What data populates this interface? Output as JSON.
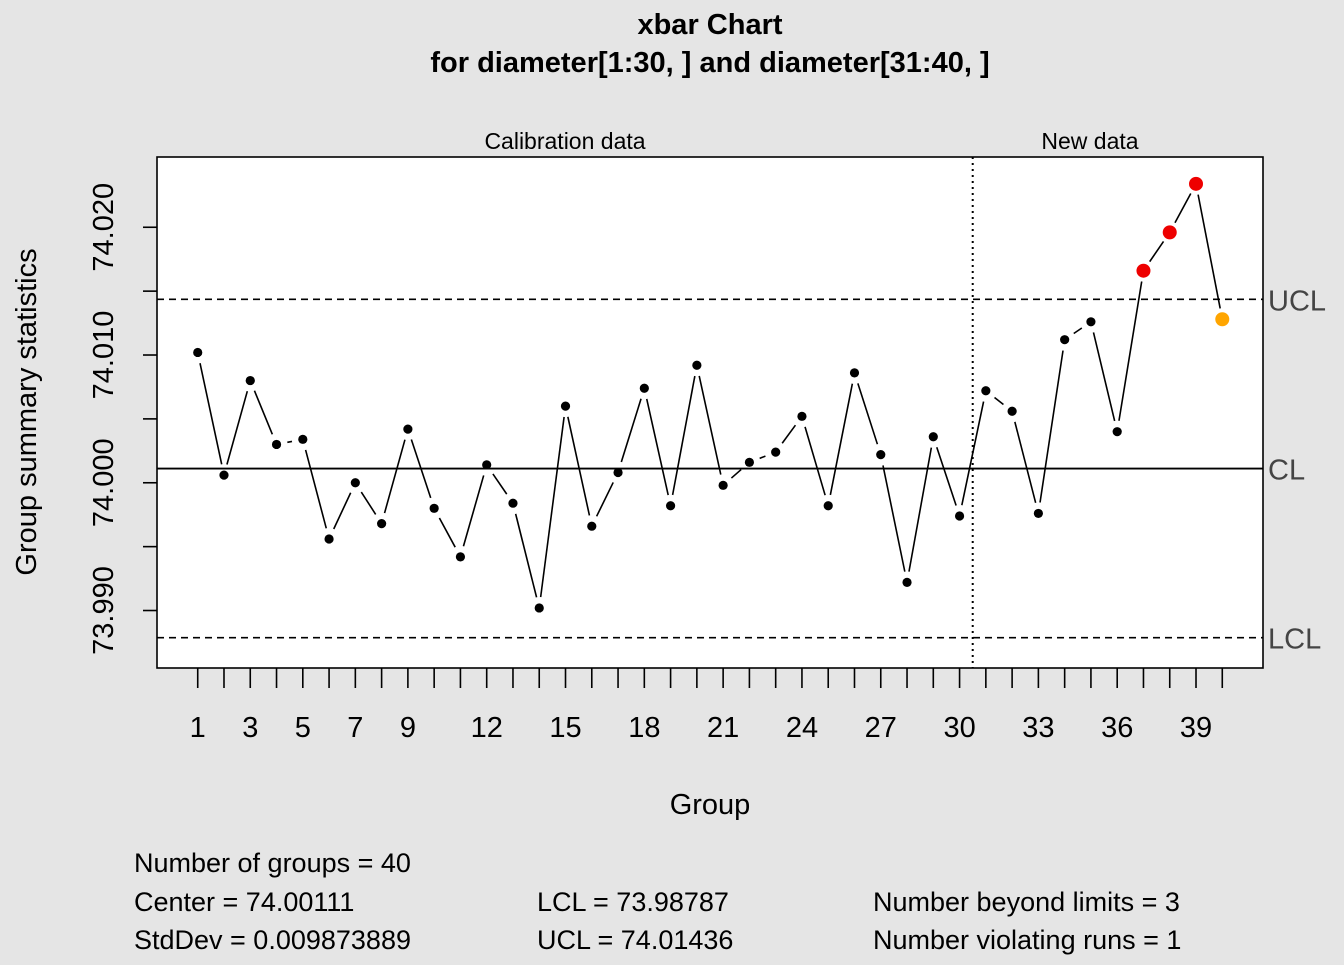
{
  "chart_data": {
    "type": "line",
    "title_line1": "xbar Chart",
    "title_line2": "for diameter[1:30, ] and diameter[31:40, ]",
    "xlabel": "Group",
    "ylabel": "Group summary statistics",
    "section_labels": {
      "calibration": "Calibration data",
      "new": "New data"
    },
    "ylim": [
      73.9855,
      74.0255
    ],
    "xlim": [
      -0.55,
      41.55
    ],
    "y_ticks": [
      73.99,
      74.0,
      74.01,
      74.02
    ],
    "y_tick_labels": [
      "73.990",
      "74.000",
      "74.010",
      "74.020"
    ],
    "y_minor_ticks": [
      73.995,
      74.005,
      74.015
    ],
    "x_ticks": [
      1,
      2,
      3,
      4,
      5,
      6,
      7,
      8,
      9,
      10,
      11,
      12,
      13,
      14,
      15,
      16,
      17,
      18,
      19,
      20,
      21,
      22,
      23,
      24,
      25,
      26,
      27,
      28,
      29,
      30,
      31,
      32,
      33,
      34,
      35,
      36,
      37,
      38,
      39,
      40
    ],
    "x_tick_labels": [
      "1",
      "3",
      "5",
      "7",
      "9",
      "12",
      "15",
      "18",
      "21",
      "24",
      "27",
      "30",
      "33",
      "36",
      "39"
    ],
    "x_tick_label_positions": [
      1,
      3,
      5,
      7,
      9,
      12,
      15,
      18,
      21,
      24,
      27,
      30,
      33,
      36,
      39
    ],
    "divider_x": 30.5,
    "center": 74.00111,
    "lcl": 73.98787,
    "ucl": 74.01436,
    "limit_labels": {
      "ucl": "UCL",
      "cl": "CL",
      "lcl": "LCL"
    },
    "x": [
      1,
      2,
      3,
      4,
      5,
      6,
      7,
      8,
      9,
      10,
      11,
      12,
      13,
      14,
      15,
      16,
      17,
      18,
      19,
      20,
      21,
      22,
      23,
      24,
      25,
      26,
      27,
      28,
      29,
      30,
      31,
      32,
      33,
      34,
      35,
      36,
      37,
      38,
      39,
      40
    ],
    "values": [
      74.0102,
      74.0006,
      74.008,
      74.003,
      74.0034,
      73.9956,
      74.0,
      73.9968,
      74.0042,
      73.998,
      73.9942,
      74.0014,
      73.9984,
      73.9902,
      74.006,
      73.9966,
      74.0008,
      74.0074,
      73.9982,
      74.0092,
      73.9998,
      74.0016,
      74.0024,
      74.0052,
      73.9982,
      74.0086,
      74.0022,
      73.9922,
      74.0036,
      73.9974,
      74.0072,
      74.0056,
      73.9976,
      74.0112,
      74.0126,
      74.004,
      74.0166,
      74.0196,
      74.0234,
      74.0128
    ],
    "point_colors": {
      "normal": "#000000",
      "beyond_limits": "#ee0000",
      "violating_runs": "#ffa500"
    },
    "beyond_limits_groups": [
      37,
      38,
      39
    ],
    "violating_runs_groups": [
      40
    ],
    "stats": {
      "num_groups": "Number of groups = 40",
      "center": "Center = 74.00111",
      "stddev": "StdDev = 0.009873889",
      "lcl": "LCL = 73.98787",
      "ucl": "UCL = 74.01436",
      "beyond": "Number beyond limits = 3",
      "runs": "Number violating runs = 1"
    }
  }
}
